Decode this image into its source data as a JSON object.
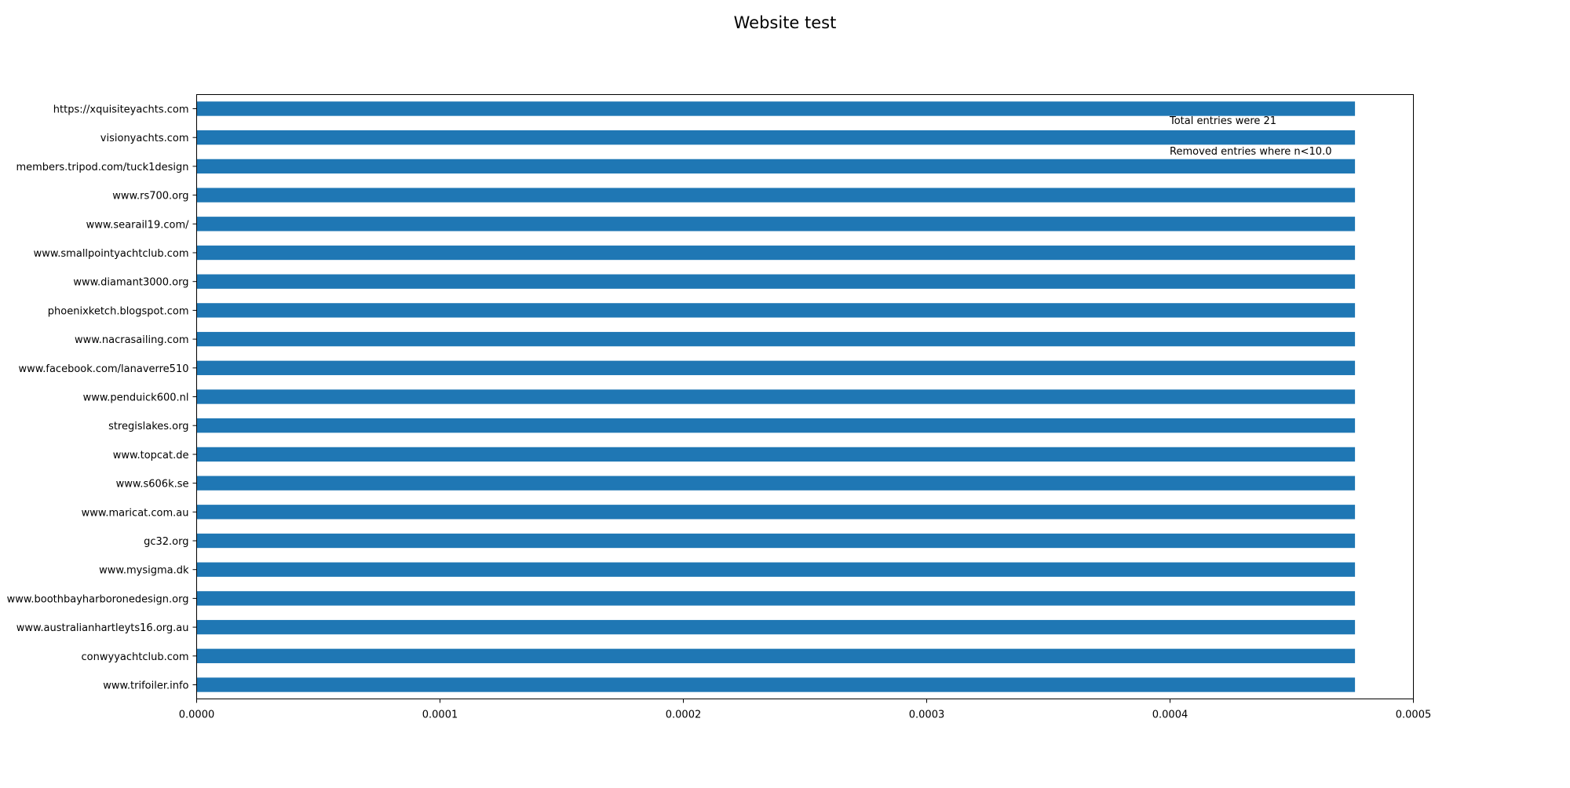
{
  "chart_data": {
    "type": "bar",
    "orientation": "horizontal",
    "title": "Website test",
    "xlabel": "",
    "ylabel": "",
    "categories": [
      "https://xquisiteyachts.com",
      "visionyachts.com",
      "members.tripod.com/tuck1design",
      "www.rs700.org",
      "www.searail19.com/",
      "www.smallpointyachtclub.com",
      "www.diamant3000.org",
      "phoenixketch.blogspot.com",
      "www.nacrasailing.com",
      "www.facebook.com/lanaverre510",
      "www.penduick600.nl",
      "stregislakes.org",
      "www.topcat.de",
      "www.s606k.se",
      "www.maricat.com.au",
      "gc32.org",
      "www.mysigma.dk",
      "www.boothbayharboronedesign.org",
      "www.australianhartleyts16.org.au",
      "conwyyachtclub.com",
      "www.trifoiler.info"
    ],
    "values": [
      0.000476,
      0.000476,
      0.000476,
      0.000476,
      0.000476,
      0.000476,
      0.000476,
      0.000476,
      0.000476,
      0.000476,
      0.000476,
      0.000476,
      0.000476,
      0.000476,
      0.000476,
      0.000476,
      0.000476,
      0.000476,
      0.000476,
      0.000476,
      0.000476
    ],
    "xlim": [
      0,
      0.0005
    ],
    "xticks": [
      "0.0000",
      "0.0001",
      "0.0002",
      "0.0003",
      "0.0004",
      "0.0005"
    ],
    "bar_color": "#1f77b4",
    "grid": false,
    "annotations": [
      "Total entries were 21",
      "Removed entries where n<10.0"
    ]
  }
}
